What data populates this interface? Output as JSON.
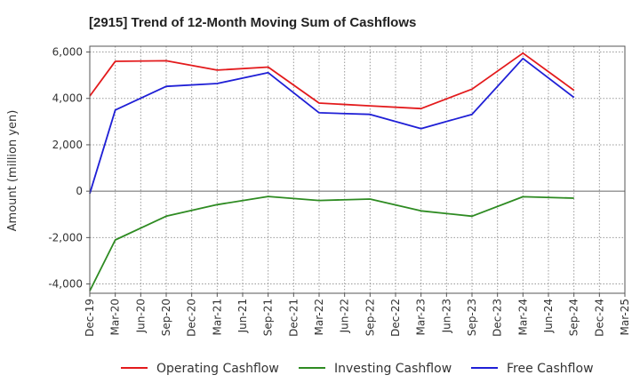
{
  "chart_data": {
    "type": "line",
    "title": "[2915]  Trend of 12-Month Moving Sum of Cashflows",
    "xlabel": "",
    "ylabel": "Amount (million yen)",
    "categories": [
      "Dec-19",
      "Mar-20",
      "Jun-20",
      "Sep-20",
      "Dec-20",
      "Mar-21",
      "Jun-21",
      "Sep-21",
      "Dec-21",
      "Mar-22",
      "Jun-22",
      "Sep-22",
      "Dec-22",
      "Mar-23",
      "Jun-23",
      "Sep-23",
      "Dec-23",
      "Mar-24",
      "Jun-24",
      "Sep-24",
      "Dec-24",
      "Mar-25"
    ],
    "y_ticks": [
      -4000,
      -2000,
      0,
      2000,
      4000,
      6000
    ],
    "y_tick_labels": [
      "-4,000",
      "-2,000",
      "0",
      "2,000",
      "4,000",
      "6,000"
    ],
    "ylim": [
      -4400,
      6250
    ],
    "grid": true,
    "legend_position": "bottom",
    "series": [
      {
        "name": "Operating Cashflow",
        "color": "#e31a1c",
        "points": [
          [
            "Dec-19",
            4100
          ],
          [
            "Mar-20",
            5600
          ],
          [
            "Sep-20",
            5620
          ],
          [
            "Mar-21",
            5220
          ],
          [
            "Sep-21",
            5350
          ],
          [
            "Mar-22",
            3800
          ],
          [
            "Sep-22",
            3680
          ],
          [
            "Mar-23",
            3560
          ],
          [
            "Sep-23",
            4400
          ],
          [
            "Mar-24",
            5950
          ],
          [
            "Sep-24",
            4350
          ]
        ]
      },
      {
        "name": "Investing Cashflow",
        "color": "#2e8b22",
        "points": [
          [
            "Dec-19",
            -4300
          ],
          [
            "Mar-20",
            -2100
          ],
          [
            "Sep-20",
            -1080
          ],
          [
            "Mar-21",
            -580
          ],
          [
            "Sep-21",
            -230
          ],
          [
            "Mar-22",
            -400
          ],
          [
            "Sep-22",
            -340
          ],
          [
            "Mar-23",
            -850
          ],
          [
            "Sep-23",
            -1080
          ],
          [
            "Mar-24",
            -240
          ],
          [
            "Sep-24",
            -300
          ]
        ]
      },
      {
        "name": "Free Cashflow",
        "color": "#1f1fd6",
        "points": [
          [
            "Dec-19",
            -100
          ],
          [
            "Mar-20",
            3500
          ],
          [
            "Sep-20",
            4520
          ],
          [
            "Mar-21",
            4640
          ],
          [
            "Sep-21",
            5110
          ],
          [
            "Mar-22",
            3380
          ],
          [
            "Sep-22",
            3310
          ],
          [
            "Mar-23",
            2700
          ],
          [
            "Sep-23",
            3310
          ],
          [
            "Mar-24",
            5720
          ],
          [
            "Sep-24",
            4040
          ]
        ]
      }
    ]
  }
}
